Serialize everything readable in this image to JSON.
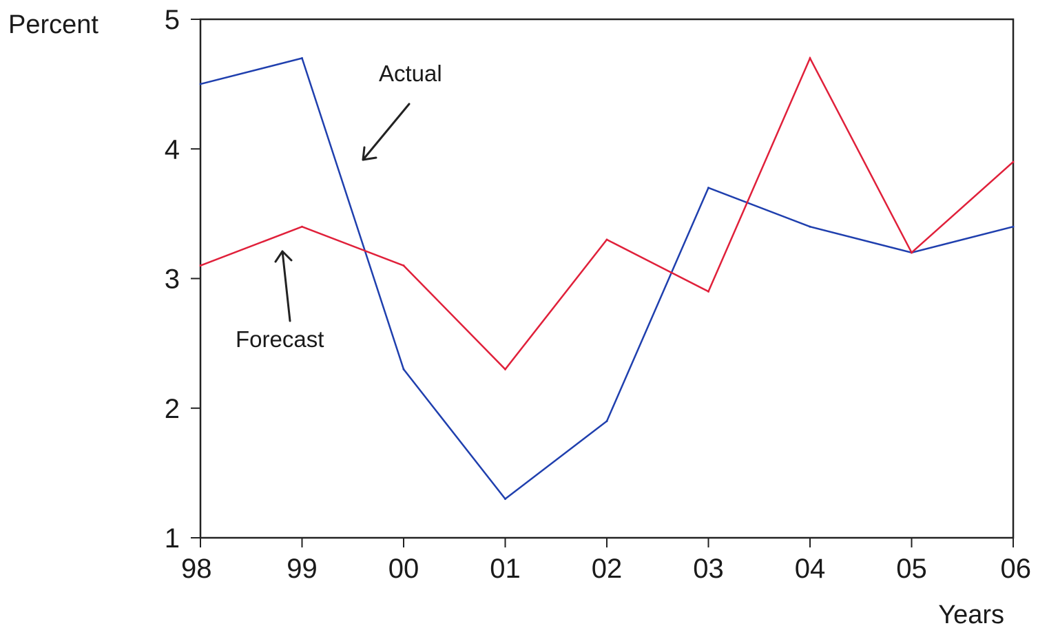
{
  "chart_data": {
    "type": "line",
    "ylabel": "Percent",
    "xlabel": "Years",
    "categories": [
      "98",
      "99",
      "00",
      "01",
      "02",
      "03",
      "04",
      "05",
      "06"
    ],
    "ylim": [
      1,
      5
    ],
    "yticks": [
      "1",
      "2",
      "3",
      "4",
      "5"
    ],
    "grid": false,
    "series": [
      {
        "key": "actual",
        "color": "#1f3fae",
        "values": [
          4.5,
          4.7,
          2.3,
          1.3,
          1.9,
          3.7,
          3.4,
          3.2,
          3.4
        ]
      },
      {
        "key": "forecast",
        "color": "#e0203a",
        "values": [
          3.1,
          3.4,
          3.1,
          2.3,
          3.3,
          2.9,
          4.7,
          3.2,
          3.9
        ]
      }
    ],
    "annotations": [
      {
        "text": "Actual",
        "points_to": "actual"
      },
      {
        "text": "Forecast",
        "points_to": "forecast"
      }
    ]
  }
}
